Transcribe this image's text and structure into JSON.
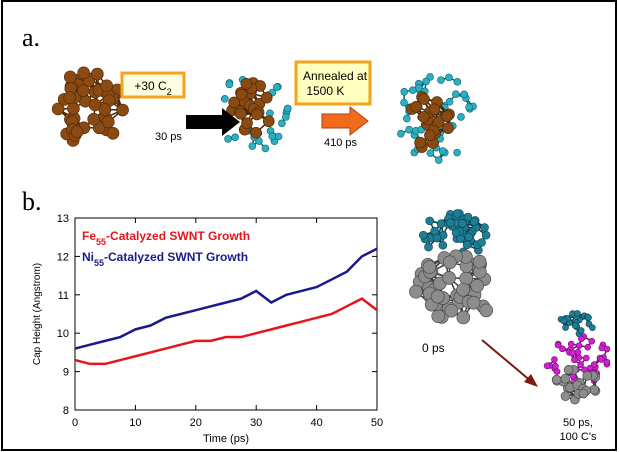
{
  "panel_a": {
    "label": "a.",
    "step1_box": "+30 C2",
    "step1_time": "30 ps",
    "step2_box": "Annealed at 1500 K",
    "step2_time": "410 ps"
  },
  "panel_b": {
    "label": "b.",
    "image1_time": "0 ps",
    "image2_time_line1": "50 ps,",
    "image2_time_line2": "100 C's"
  },
  "chart_data": {
    "type": "line",
    "x_label": "Time (ps)",
    "y_label": "Cap Height (Angstrom)",
    "x": [
      0,
      2.5,
      5,
      7.5,
      10,
      12.5,
      15,
      17.5,
      20,
      22.5,
      25,
      27.5,
      30,
      32.5,
      35,
      37.5,
      40,
      42.5,
      45,
      47.5,
      50
    ],
    "series": [
      {
        "name": "Fe55-Catalyzed SWNT Growth",
        "color": "#e8141c",
        "values": [
          9.3,
          9.2,
          9.2,
          9.3,
          9.4,
          9.5,
          9.6,
          9.7,
          9.8,
          9.8,
          9.9,
          9.9,
          10.0,
          10.1,
          10.2,
          10.3,
          10.4,
          10.5,
          10.7,
          10.9,
          10.6
        ]
      },
      {
        "name": "Ni55-Catalyzed SWNT Growth",
        "color": "#1a1a8c",
        "values": [
          9.6,
          9.7,
          9.8,
          9.9,
          10.1,
          10.2,
          10.4,
          10.5,
          10.6,
          10.7,
          10.8,
          10.9,
          11.1,
          10.8,
          11.0,
          11.1,
          11.2,
          11.4,
          11.6,
          12.0,
          12.2
        ]
      }
    ],
    "xlim": [
      0,
      50
    ],
    "xticks": [
      0,
      10,
      20,
      30,
      40,
      50
    ],
    "ylim": [
      8,
      13
    ],
    "yticks": [
      8,
      9,
      10,
      11,
      12,
      13
    ]
  }
}
